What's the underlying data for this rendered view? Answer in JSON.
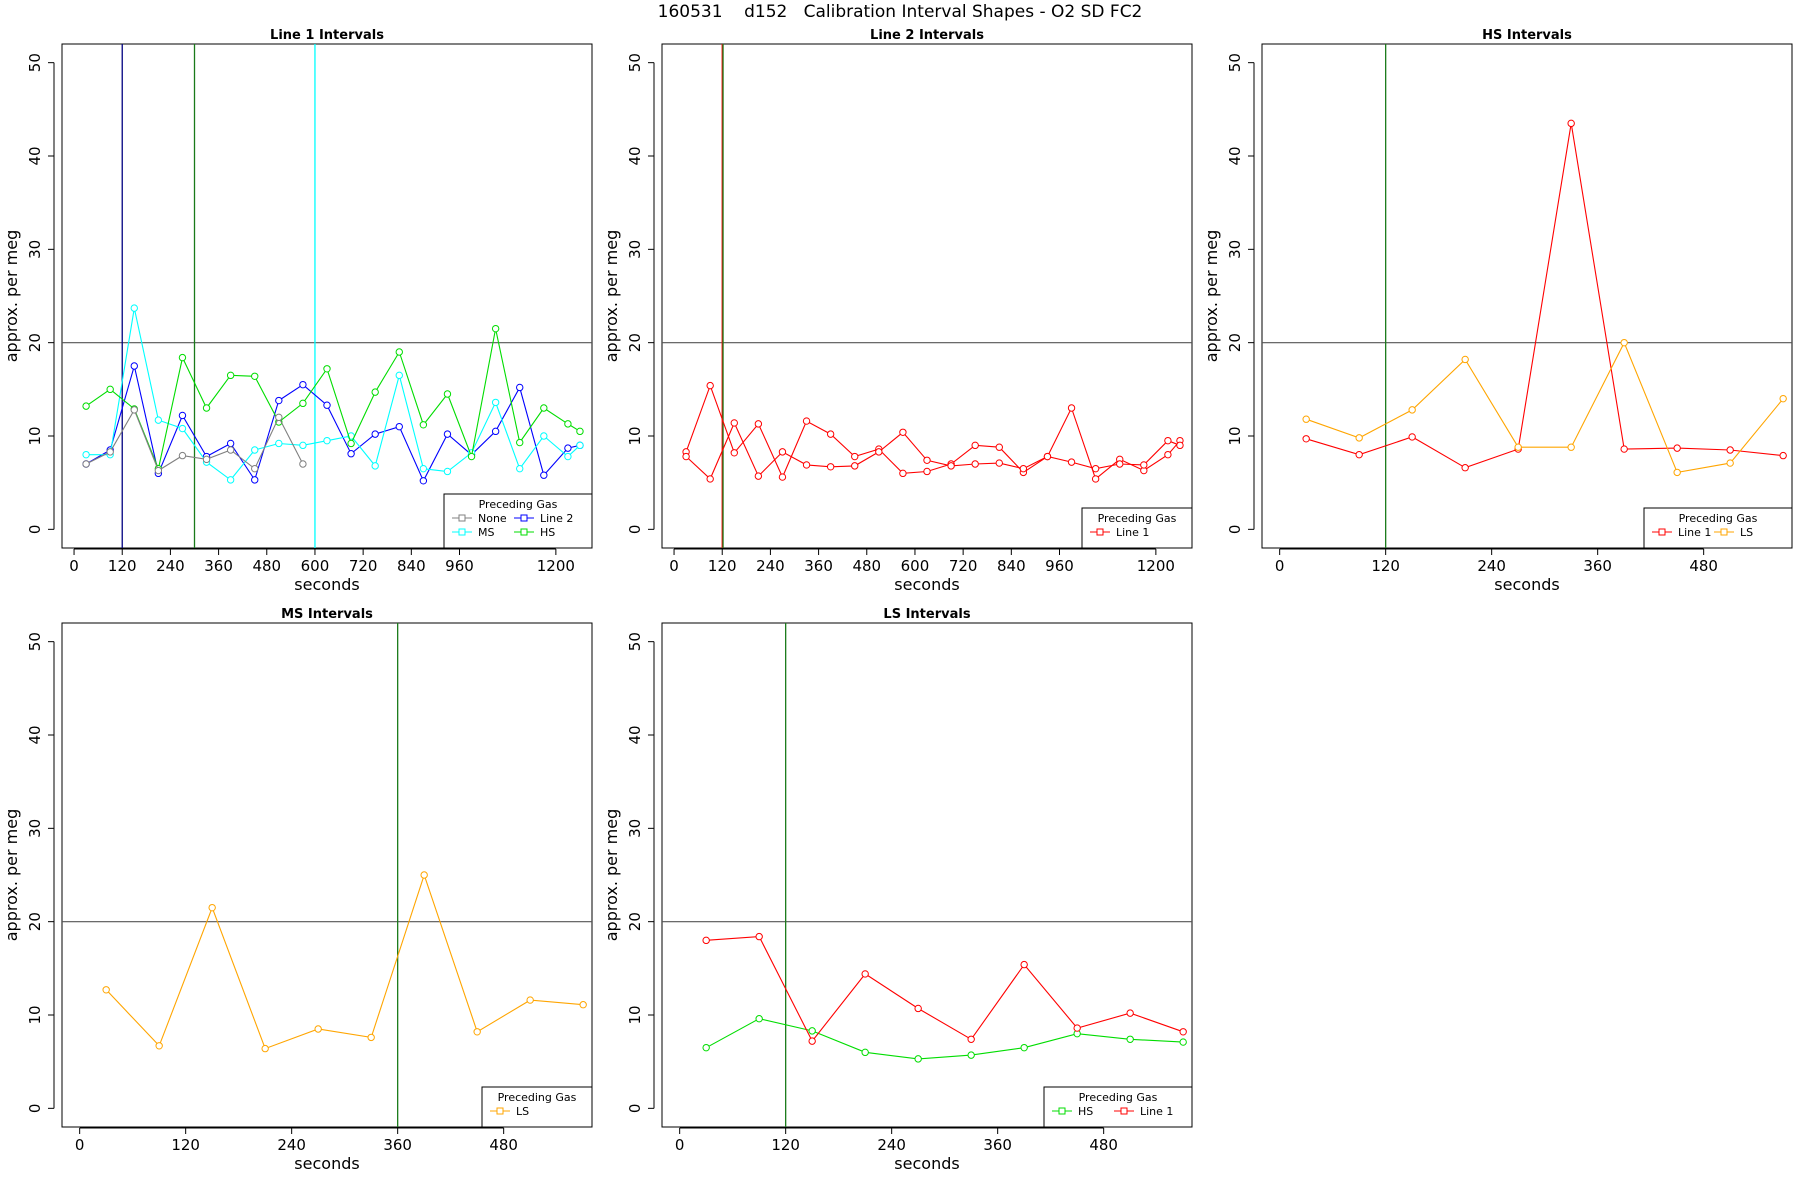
{
  "page": {
    "title": "160531    d152   Calibration Interval Shapes - O2 SD FC2",
    "colors": {
      "Line 1": "#ff0000",
      "Line 2": "#0000ff",
      "None": "#808080",
      "MS": "#00ffff",
      "HS": "#00dd00",
      "LS": "#ffa500",
      "axis": "#000000",
      "ref": "#555555"
    }
  },
  "chart_data": [
    {
      "type": "line",
      "title": "Line 1 Intervals",
      "xlabel": "seconds",
      "ylabel": "approx. per meg",
      "xlim": [
        -30,
        1290
      ],
      "ylim": [
        -2,
        52
      ],
      "x_ticks": [
        0,
        120,
        240,
        360,
        480,
        600,
        720,
        840,
        960,
        1200
      ],
      "y_ticks": [
        0,
        10,
        20,
        30,
        40,
        50
      ],
      "hline": 20,
      "vlines": [
        {
          "x": 120,
          "series": "Line 2"
        },
        {
          "x": 300,
          "series": "HS"
        },
        {
          "x": 600,
          "series": "MS"
        }
      ],
      "legend": {
        "title": "Preceding Gas",
        "position": "bottom-right",
        "entries": [
          "None",
          "MS",
          "Line 2",
          "HS"
        ]
      },
      "series": [
        {
          "name": "Line 2",
          "x": [
            30,
            90,
            150,
            210,
            270,
            330,
            390,
            450,
            510,
            570,
            630,
            690,
            750,
            810,
            870,
            930,
            990,
            1050,
            1110,
            1170,
            1230,
            1260
          ],
          "y": [
            7,
            8.5,
            17.5,
            6,
            12.2,
            7.8,
            9.2,
            5.3,
            13.8,
            15.5,
            13.3,
            8.1,
            10.2,
            11,
            5.2,
            10.2,
            8,
            10.5,
            15.2,
            5.8,
            8.7,
            9
          ]
        },
        {
          "name": "MS",
          "x": [
            30,
            90,
            150,
            210,
            270,
            330,
            390,
            450,
            510,
            570,
            630,
            690,
            750,
            810,
            870,
            930,
            990,
            1050,
            1110,
            1170,
            1230,
            1260
          ],
          "y": [
            8,
            8,
            23.7,
            11.7,
            10.8,
            7.2,
            5.3,
            8.5,
            9.2,
            9,
            9.5,
            10,
            6.8,
            16.5,
            6.5,
            6.2,
            8.2,
            13.6,
            6.5,
            10,
            7.8,
            9
          ]
        },
        {
          "name": "HS",
          "x": [
            30,
            90,
            150,
            210,
            270,
            330,
            390,
            450,
            510,
            570,
            630,
            690,
            750,
            810,
            870,
            930,
            990,
            1050,
            1110,
            1170,
            1230,
            1260
          ],
          "y": [
            13.2,
            15,
            12.9,
            6.5,
            18.4,
            13,
            16.5,
            16.4,
            11.5,
            13.5,
            17.2,
            9.2,
            14.7,
            19,
            11.2,
            14.5,
            7.8,
            21.5,
            9.3,
            13,
            11.3,
            10.5
          ]
        },
        {
          "name": "None",
          "x": [
            30,
            90,
            150,
            210,
            270,
            330,
            390,
            450,
            510,
            570
          ],
          "y": [
            7,
            8.3,
            12.8,
            6.3,
            7.9,
            7.5,
            8.5,
            6.5,
            12,
            7
          ]
        }
      ]
    },
    {
      "type": "line",
      "title": "Line 2 Intervals",
      "xlabel": "seconds",
      "ylabel": "approx. per meg",
      "xlim": [
        -30,
        1290
      ],
      "ylim": [
        -2,
        52
      ],
      "x_ticks": [
        0,
        120,
        240,
        360,
        480,
        600,
        720,
        840,
        960,
        1200
      ],
      "y_ticks": [
        0,
        10,
        20,
        30,
        40,
        50
      ],
      "hline": 20,
      "vlines": [
        {
          "x": 120,
          "series": "Line 1"
        },
        {
          "x": 122,
          "series": "HS"
        }
      ],
      "legend": {
        "title": "Preceding Gas",
        "position": "bottom-right",
        "entries": [
          "Line 1"
        ]
      },
      "series": [
        {
          "name": "Line 1",
          "x": [
            30,
            90,
            150,
            210,
            270,
            330,
            390,
            450,
            510,
            570,
            630,
            690,
            750,
            810,
            870,
            930,
            990,
            1050,
            1110,
            1170,
            1230,
            1260
          ],
          "y": [
            8.3,
            15.4,
            8.2,
            11.3,
            5.6,
            11.6,
            10.2,
            7.8,
            8.6,
            6,
            6.2,
            7,
            9,
            8.8,
            6.1,
            7.8,
            13,
            5.4,
            7.5,
            6.3,
            8,
            9.5
          ]
        },
        {
          "name": "Line 1",
          "x": [
            30,
            90,
            150,
            210,
            270,
            330,
            390,
            450,
            510,
            570,
            630,
            690,
            750,
            810,
            870,
            930,
            990,
            1050,
            1110,
            1170,
            1230,
            1260
          ],
          "y": [
            7.8,
            5.4,
            11.4,
            5.7,
            8.3,
            6.9,
            6.7,
            6.8,
            8.3,
            10.4,
            7.4,
            6.8,
            7,
            7.1,
            6.5,
            7.8,
            7.2,
            6.5,
            7,
            6.9,
            9.5,
            9
          ]
        }
      ]
    },
    {
      "type": "line",
      "title": "HS Intervals",
      "xlabel": "seconds",
      "ylabel": "approx. per meg",
      "xlim": [
        -20,
        580
      ],
      "ylim": [
        -2,
        52
      ],
      "x_ticks": [
        0,
        120,
        240,
        360,
        480
      ],
      "y_ticks": [
        0,
        10,
        20,
        30,
        40,
        50
      ],
      "hline": 20,
      "vlines": [
        {
          "x": 120,
          "series": "HS"
        }
      ],
      "legend": {
        "title": "Preceding Gas",
        "position": "bottom-right",
        "entries": [
          "Line 1",
          "LS"
        ]
      },
      "series": [
        {
          "name": "Line 1",
          "x": [
            30,
            90,
            150,
            210,
            270,
            330,
            390,
            450,
            510,
            570
          ],
          "y": [
            9.7,
            8,
            9.9,
            6.6,
            8.6,
            43.5,
            8.6,
            8.7,
            8.5,
            7.9
          ]
        },
        {
          "name": "LS",
          "x": [
            30,
            90,
            150,
            210,
            270,
            330,
            390,
            450,
            510,
            570
          ],
          "y": [
            11.8,
            9.8,
            12.8,
            18.2,
            8.8,
            8.8,
            20,
            6.1,
            7.1,
            14
          ]
        }
      ]
    },
    {
      "type": "line",
      "title": "MS Intervals",
      "xlabel": "seconds",
      "ylabel": "approx. per meg",
      "xlim": [
        -20,
        580
      ],
      "ylim": [
        -2,
        52
      ],
      "x_ticks": [
        0,
        120,
        240,
        360,
        480
      ],
      "y_ticks": [
        0,
        10,
        20,
        30,
        40,
        50
      ],
      "hline": 20,
      "vlines": [
        {
          "x": 360,
          "series": "HS"
        }
      ],
      "legend": {
        "title": "Preceding Gas",
        "position": "bottom-right",
        "entries": [
          "LS"
        ]
      },
      "series": [
        {
          "name": "LS",
          "x": [
            30,
            90,
            150,
            210,
            270,
            330,
            390,
            450,
            510,
            570
          ],
          "y": [
            12.7,
            6.7,
            21.5,
            6.4,
            8.5,
            7.6,
            25,
            8.2,
            11.6,
            11.1
          ]
        }
      ]
    },
    {
      "type": "line",
      "title": "LS Intervals",
      "xlabel": "seconds",
      "ylabel": "approx. per meg",
      "xlim": [
        -20,
        580
      ],
      "ylim": [
        -2,
        52
      ],
      "x_ticks": [
        0,
        120,
        240,
        360,
        480
      ],
      "y_ticks": [
        0,
        10,
        20,
        30,
        40,
        50
      ],
      "hline": 20,
      "vlines": [
        {
          "x": 120,
          "series": "HS"
        }
      ],
      "legend": {
        "title": "Preceding Gas",
        "position": "bottom-right",
        "entries": [
          "HS",
          "Line 1"
        ]
      },
      "series": [
        {
          "name": "HS",
          "x": [
            30,
            90,
            150,
            210,
            270,
            330,
            390,
            450,
            510,
            570
          ],
          "y": [
            6.5,
            9.6,
            8.3,
            6,
            5.3,
            5.7,
            6.5,
            8,
            7.4,
            7.1
          ]
        },
        {
          "name": "Line 1",
          "x": [
            30,
            90,
            150,
            210,
            270,
            330,
            390,
            450,
            510,
            570
          ],
          "y": [
            18,
            18.4,
            7.2,
            14.4,
            10.7,
            7.4,
            15.4,
            8.6,
            10.2,
            8.2
          ]
        }
      ]
    }
  ]
}
